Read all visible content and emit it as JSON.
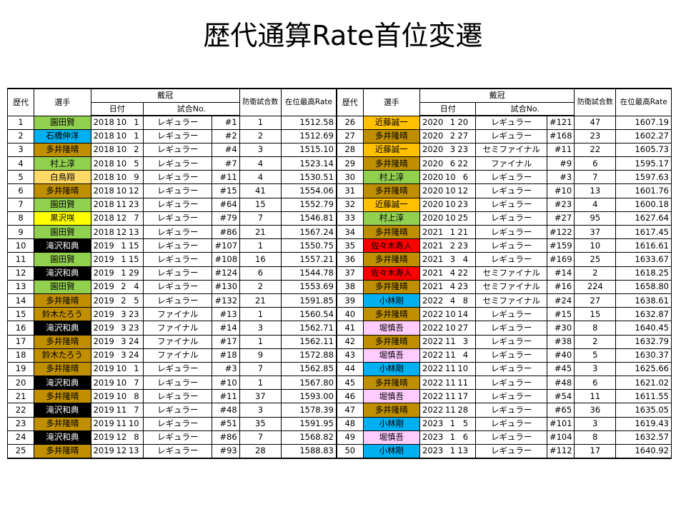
{
  "title": "歴代通算Rate首位変遷",
  "headers": {
    "era": "歴代",
    "player": "選手",
    "crown": "戴冠",
    "date": "日付",
    "match_no": "試合No.",
    "defenses": "防衛試合数",
    "max_rate": "在位最高Rate"
  },
  "player_colors": {
    "園田賢": "#92d050",
    "石橋伸洋": "#00b0f0",
    "多井隆晴": "#bf8f00",
    "村上淳": "#92d050",
    "白鳥翔": "#ffd966",
    "黒沢咲": "#ffff00",
    "滝沢和典": "#000000",
    "鈴木たろう": "#bf8f00",
    "近藤誠一": "#ffc000",
    "佐々木寿人": "#ff0000",
    "小林剛": "#00b0f0",
    "堀慎吾": "#ffccff"
  },
  "player_text_colors": {
    "滝沢和典": "#ffffff"
  },
  "rows": [
    {
      "era": "1",
      "player": "園田賢",
      "y": "2018",
      "m": "10",
      "d": "1",
      "kind": "レギュラー",
      "no": "#1",
      "defenses": "1",
      "max_rate": "1512.58"
    },
    {
      "era": "2",
      "player": "石橋伸洋",
      "y": "2018",
      "m": "10",
      "d": "1",
      "kind": "レギュラー",
      "no": "#2",
      "defenses": "2",
      "max_rate": "1512.69"
    },
    {
      "era": "3",
      "player": "多井隆晴",
      "y": "2018",
      "m": "10",
      "d": "2",
      "kind": "レギュラー",
      "no": "#4",
      "defenses": "3",
      "max_rate": "1515.10"
    },
    {
      "era": "4",
      "player": "村上淳",
      "y": "2018",
      "m": "10",
      "d": "5",
      "kind": "レギュラー",
      "no": "#7",
      "defenses": "4",
      "max_rate": "1523.14"
    },
    {
      "era": "5",
      "player": "白鳥翔",
      "y": "2018",
      "m": "10",
      "d": "9",
      "kind": "レギュラー",
      "no": "#11",
      "defenses": "4",
      "max_rate": "1530.51"
    },
    {
      "era": "6",
      "player": "多井隆晴",
      "y": "2018",
      "m": "10",
      "d": "12",
      "kind": "レギュラー",
      "no": "#15",
      "defenses": "41",
      "max_rate": "1554.06"
    },
    {
      "era": "7",
      "player": "園田賢",
      "y": "2018",
      "m": "11",
      "d": "23",
      "kind": "レギュラー",
      "no": "#64",
      "defenses": "15",
      "max_rate": "1552.79"
    },
    {
      "era": "8",
      "player": "黒沢咲",
      "y": "2018",
      "m": "12",
      "d": "7",
      "kind": "レギュラー",
      "no": "#79",
      "defenses": "7",
      "max_rate": "1546.81"
    },
    {
      "era": "9",
      "player": "園田賢",
      "y": "2018",
      "m": "12",
      "d": "13",
      "kind": "レギュラー",
      "no": "#86",
      "defenses": "21",
      "max_rate": "1567.24"
    },
    {
      "era": "10",
      "player": "滝沢和典",
      "y": "2019",
      "m": "1",
      "d": "15",
      "kind": "レギュラー",
      "no": "#107",
      "defenses": "1",
      "max_rate": "1550.75"
    },
    {
      "era": "11",
      "player": "園田賢",
      "y": "2019",
      "m": "1",
      "d": "15",
      "kind": "レギュラー",
      "no": "#108",
      "defenses": "16",
      "max_rate": "1557.21"
    },
    {
      "era": "12",
      "player": "滝沢和典",
      "y": "2019",
      "m": "1",
      "d": "29",
      "kind": "レギュラー",
      "no": "#124",
      "defenses": "6",
      "max_rate": "1544.78"
    },
    {
      "era": "13",
      "player": "園田賢",
      "y": "2019",
      "m": "2",
      "d": "4",
      "kind": "レギュラー",
      "no": "#130",
      "defenses": "2",
      "max_rate": "1553.69"
    },
    {
      "era": "14",
      "player": "多井隆晴",
      "y": "2019",
      "m": "2",
      "d": "5",
      "kind": "レギュラー",
      "no": "#132",
      "defenses": "21",
      "max_rate": "1591.85"
    },
    {
      "era": "15",
      "player": "鈴木たろう",
      "y": "2019",
      "m": "3",
      "d": "23",
      "kind": "ファイナル",
      "no": "#13",
      "defenses": "1",
      "max_rate": "1560.54"
    },
    {
      "era": "16",
      "player": "滝沢和典",
      "y": "2019",
      "m": "3",
      "d": "23",
      "kind": "ファイナル",
      "no": "#14",
      "defenses": "3",
      "max_rate": "1562.71"
    },
    {
      "era": "17",
      "player": "多井隆晴",
      "y": "2019",
      "m": "3",
      "d": "24",
      "kind": "ファイナル",
      "no": "#17",
      "defenses": "1",
      "max_rate": "1562.11"
    },
    {
      "era": "18",
      "player": "鈴木たろう",
      "y": "2019",
      "m": "3",
      "d": "24",
      "kind": "ファイナル",
      "no": "#18",
      "defenses": "9",
      "max_rate": "1572.88"
    },
    {
      "era": "19",
      "player": "多井隆晴",
      "y": "2019",
      "m": "10",
      "d": "1",
      "kind": "レギュラー",
      "no": "#3",
      "defenses": "7",
      "max_rate": "1562.85"
    },
    {
      "era": "20",
      "player": "滝沢和典",
      "y": "2019",
      "m": "10",
      "d": "7",
      "kind": "レギュラー",
      "no": "#10",
      "defenses": "1",
      "max_rate": "1567.80"
    },
    {
      "era": "21",
      "player": "多井隆晴",
      "y": "2019",
      "m": "10",
      "d": "8",
      "kind": "レギュラー",
      "no": "#11",
      "defenses": "37",
      "max_rate": "1593.00"
    },
    {
      "era": "22",
      "player": "滝沢和典",
      "y": "2019",
      "m": "11",
      "d": "7",
      "kind": "レギュラー",
      "no": "#48",
      "defenses": "3",
      "max_rate": "1578.39"
    },
    {
      "era": "23",
      "player": "多井隆晴",
      "y": "2019",
      "m": "11",
      "d": "10",
      "kind": "レギュラー",
      "no": "#51",
      "defenses": "35",
      "max_rate": "1591.95"
    },
    {
      "era": "24",
      "player": "滝沢和典",
      "y": "2019",
      "m": "12",
      "d": "8",
      "kind": "レギュラー",
      "no": "#86",
      "defenses": "7",
      "max_rate": "1568.82"
    },
    {
      "era": "25",
      "player": "多井隆晴",
      "y": "2019",
      "m": "12",
      "d": "13",
      "kind": "レギュラー",
      "no": "#93",
      "defenses": "28",
      "max_rate": "1588.83"
    },
    {
      "era": "26",
      "player": "近藤誠一",
      "y": "2020",
      "m": "1",
      "d": "20",
      "kind": "レギュラー",
      "no": "#121",
      "defenses": "47",
      "max_rate": "1607.19"
    },
    {
      "era": "27",
      "player": "多井隆晴",
      "y": "2020",
      "m": "2",
      "d": "27",
      "kind": "レギュラー",
      "no": "#168",
      "defenses": "23",
      "max_rate": "1602.27"
    },
    {
      "era": "28",
      "player": "近藤誠一",
      "y": "2020",
      "m": "3",
      "d": "23",
      "kind": "セミファイナル",
      "no": "#11",
      "defenses": "22",
      "max_rate": "1605.73"
    },
    {
      "era": "29",
      "player": "多井隆晴",
      "y": "2020",
      "m": "6",
      "d": "22",
      "kind": "ファイナル",
      "no": "#9",
      "defenses": "6",
      "max_rate": "1595.17"
    },
    {
      "era": "30",
      "player": "村上淳",
      "y": "2020",
      "m": "10",
      "d": "6",
      "kind": "レギュラー",
      "no": "#3",
      "defenses": "7",
      "max_rate": "1597.63"
    },
    {
      "era": "31",
      "player": "多井隆晴",
      "y": "2020",
      "m": "10",
      "d": "12",
      "kind": "レギュラー",
      "no": "#10",
      "defenses": "13",
      "max_rate": "1601.76"
    },
    {
      "era": "32",
      "player": "近藤誠一",
      "y": "2020",
      "m": "10",
      "d": "23",
      "kind": "レギュラー",
      "no": "#23",
      "defenses": "4",
      "max_rate": "1600.18"
    },
    {
      "era": "33",
      "player": "村上淳",
      "y": "2020",
      "m": "10",
      "d": "25",
      "kind": "レギュラー",
      "no": "#27",
      "defenses": "95",
      "max_rate": "1627.64"
    },
    {
      "era": "34",
      "player": "多井隆晴",
      "y": "2021",
      "m": "1",
      "d": "21",
      "kind": "レギュラー",
      "no": "#122",
      "defenses": "37",
      "max_rate": "1617.45"
    },
    {
      "era": "35",
      "player": "佐々木寿人",
      "y": "2021",
      "m": "2",
      "d": "23",
      "kind": "レギュラー",
      "no": "#159",
      "defenses": "10",
      "max_rate": "1616.61"
    },
    {
      "era": "36",
      "player": "多井隆晴",
      "y": "2021",
      "m": "3",
      "d": "4",
      "kind": "レギュラー",
      "no": "#169",
      "defenses": "25",
      "max_rate": "1633.67"
    },
    {
      "era": "37",
      "player": "佐々木寿人",
      "y": "2021",
      "m": "4",
      "d": "22",
      "kind": "セミファイナル",
      "no": "#14",
      "defenses": "2",
      "max_rate": "1618.25"
    },
    {
      "era": "38",
      "player": "多井隆晴",
      "y": "2021",
      "m": "4",
      "d": "23",
      "kind": "セミファイナル",
      "no": "#16",
      "defenses": "224",
      "max_rate": "1658.80"
    },
    {
      "era": "39",
      "player": "小林剛",
      "y": "2022",
      "m": "4",
      "d": "8",
      "kind": "セミファイナル",
      "no": "#24",
      "defenses": "27",
      "max_rate": "1638.61"
    },
    {
      "era": "40",
      "player": "多井隆晴",
      "y": "2022",
      "m": "10",
      "d": "14",
      "kind": "レギュラー",
      "no": "#15",
      "defenses": "15",
      "max_rate": "1632.87"
    },
    {
      "era": "41",
      "player": "堀慎吾",
      "y": "2022",
      "m": "10",
      "d": "27",
      "kind": "レギュラー",
      "no": "#30",
      "defenses": "8",
      "max_rate": "1640.45"
    },
    {
      "era": "42",
      "player": "多井隆晴",
      "y": "2022",
      "m": "11",
      "d": "3",
      "kind": "レギュラー",
      "no": "#38",
      "defenses": "2",
      "max_rate": "1632.79"
    },
    {
      "era": "43",
      "player": "堀慎吾",
      "y": "2022",
      "m": "11",
      "d": "4",
      "kind": "レギュラー",
      "no": "#40",
      "defenses": "5",
      "max_rate": "1630.37"
    },
    {
      "era": "44",
      "player": "小林剛",
      "y": "2022",
      "m": "11",
      "d": "10",
      "kind": "レギュラー",
      "no": "#45",
      "defenses": "3",
      "max_rate": "1625.66"
    },
    {
      "era": "45",
      "player": "多井隆晴",
      "y": "2022",
      "m": "11",
      "d": "11",
      "kind": "レギュラー",
      "no": "#48",
      "defenses": "6",
      "max_rate": "1621.02"
    },
    {
      "era": "46",
      "player": "堀慎吾",
      "y": "2022",
      "m": "11",
      "d": "17",
      "kind": "レギュラー",
      "no": "#54",
      "defenses": "11",
      "max_rate": "1611.55"
    },
    {
      "era": "47",
      "player": "多井隆晴",
      "y": "2022",
      "m": "11",
      "d": "28",
      "kind": "レギュラー",
      "no": "#65",
      "defenses": "36",
      "max_rate": "1635.05"
    },
    {
      "era": "48",
      "player": "小林剛",
      "y": "2023",
      "m": "1",
      "d": "5",
      "kind": "レギュラー",
      "no": "#101",
      "defenses": "3",
      "max_rate": "1619.43"
    },
    {
      "era": "49",
      "player": "堀慎吾",
      "y": "2023",
      "m": "1",
      "d": "6",
      "kind": "レギュラー",
      "no": "#104",
      "defenses": "8",
      "max_rate": "1632.57"
    },
    {
      "era": "50",
      "player": "小林剛",
      "y": "2023",
      "m": "1",
      "d": "13",
      "kind": "レギュラー",
      "no": "#112",
      "defenses": "17",
      "max_rate": "1640.92"
    }
  ]
}
